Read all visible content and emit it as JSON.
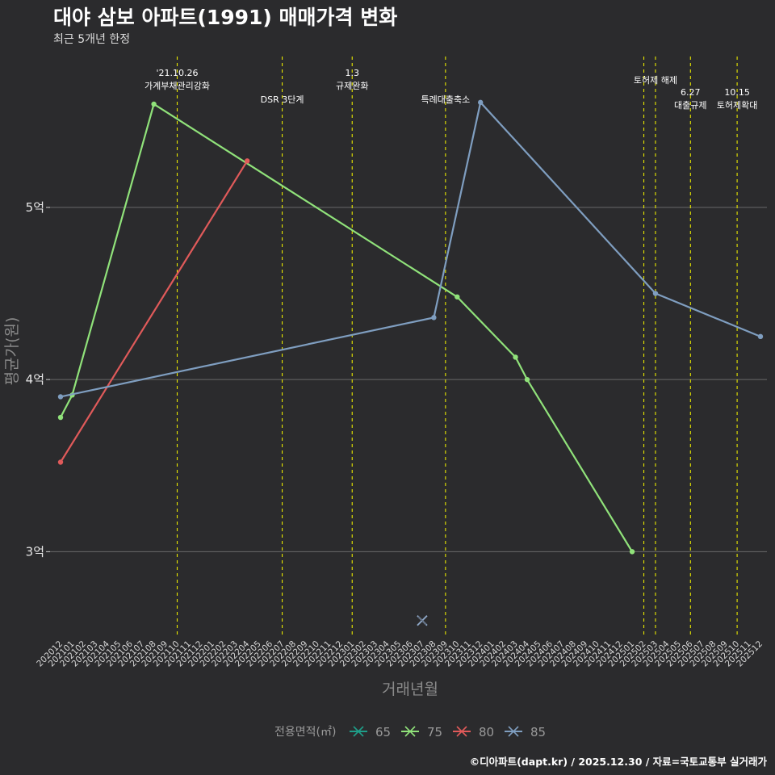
{
  "header": {
    "title": "대야 삼보 아파트(1991) 매매가격 변화",
    "subtitle": "최근 5개년 한정"
  },
  "caption": "©디아파트(dapt.kr) / 2025.12.30 / 자료=국토교통부 실거래가",
  "chart_data": {
    "type": "line",
    "title": "대야 삼보 아파트(1991) 매매가격 변화",
    "xlabel": "거래년월",
    "ylabel": "평균가(원)",
    "ylim": [
      2.5,
      5.9
    ],
    "yticks": [
      3,
      4,
      5
    ],
    "ytick_labels": [
      "3억",
      "4억",
      "5억"
    ],
    "categories": [
      "202012",
      "202101",
      "202102",
      "202103",
      "202104",
      "202105",
      "202106",
      "202107",
      "202108",
      "202109",
      "202110",
      "202111",
      "202112",
      "202201",
      "202202",
      "202203",
      "202204",
      "202205",
      "202206",
      "202207",
      "202208",
      "202209",
      "202210",
      "202211",
      "202212",
      "202301",
      "202302",
      "202303",
      "202304",
      "202305",
      "202306",
      "202307",
      "202308",
      "202309",
      "202310",
      "202311",
      "202312",
      "202401",
      "202402",
      "202403",
      "202404",
      "202405",
      "202406",
      "202407",
      "202408",
      "202409",
      "202410",
      "202411",
      "202412",
      "202501",
      "202502",
      "202503",
      "202504",
      "202505",
      "202506",
      "202507",
      "202508",
      "202509",
      "202510",
      "202511",
      "202512"
    ],
    "series": [
      {
        "name": "65",
        "color": "#1f9e89",
        "points": [
          {
            "x": "202307",
            "y": 2.6
          }
        ]
      },
      {
        "name": "75",
        "color": "#90e27a",
        "points": [
          {
            "x": "202012",
            "y": 3.78
          },
          {
            "x": "202101",
            "y": 3.91
          },
          {
            "x": "202108",
            "y": 5.6
          },
          {
            "x": "202310",
            "y": 4.48
          },
          {
            "x": "202403",
            "y": 4.13
          },
          {
            "x": "202404",
            "y": 4.0
          },
          {
            "x": "202501",
            "y": 3.0
          }
        ]
      },
      {
        "name": "80",
        "color": "#e05a5a",
        "points": [
          {
            "x": "202012",
            "y": 3.52
          },
          {
            "x": "202204",
            "y": 5.27
          }
        ]
      },
      {
        "name": "85",
        "color": "#7f9ec0",
        "points": [
          {
            "x": "202012",
            "y": 3.9
          },
          {
            "x": "202308",
            "y": 4.36
          },
          {
            "x": "202312",
            "y": 5.61
          },
          {
            "x": "202503",
            "y": 4.5
          },
          {
            "x": "202512",
            "y": 4.25
          }
        ]
      }
    ],
    "events": [
      {
        "x": "202110",
        "lines": [
          "'21.10.26",
          "가계부채관리강화"
        ],
        "row": "top"
      },
      {
        "x": "202207",
        "lines": [
          "DSR 3단계"
        ],
        "row": "low"
      },
      {
        "x": "202301",
        "lines": [
          "1.3",
          "규제완화"
        ],
        "row": "top"
      },
      {
        "x": "202309",
        "lines": [
          "특례대출축소"
        ],
        "row": "low"
      },
      {
        "x": "202502",
        "lines": [],
        "row": "top"
      },
      {
        "x": "202503",
        "lines": [
          "토허제 해제"
        ],
        "row": "mid"
      },
      {
        "x": "202506",
        "lines": [
          "6.27",
          "대출규제"
        ],
        "row": "low2"
      },
      {
        "x": "202510",
        "lines": [
          "10.15",
          "토허제확대"
        ],
        "row": "low2"
      }
    ],
    "legend": {
      "title": "전용면적(㎡)",
      "position": "bottom",
      "entries": [
        "65",
        "75",
        "80",
        "85"
      ]
    }
  }
}
